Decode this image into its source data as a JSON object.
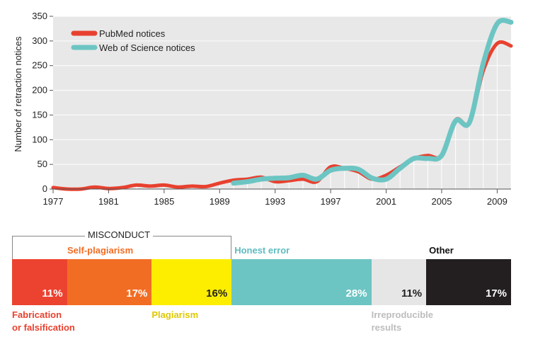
{
  "chart_data": [
    {
      "type": "line",
      "ylabel": "Number of retraction notices",
      "ylim": [
        0,
        350
      ],
      "yticks": [
        0,
        50,
        100,
        150,
        200,
        250,
        300,
        350
      ],
      "xlim": [
        1977,
        2010
      ],
      "xticks": [
        1977,
        1981,
        1985,
        1989,
        1993,
        1997,
        2001,
        2005,
        2009
      ],
      "grid": "vertical year lines from data points",
      "legend_position": "top-left",
      "series": [
        {
          "name": "PubMed notices",
          "color": "#e8412f",
          "x": [
            1977,
            1978,
            1979,
            1980,
            1981,
            1982,
            1983,
            1984,
            1985,
            1986,
            1987,
            1988,
            1989,
            1990,
            1991,
            1992,
            1993,
            1994,
            1995,
            1996,
            1997,
            1998,
            1999,
            2000,
            2001,
            2002,
            2003,
            2004,
            2005,
            2006,
            2007,
            2008,
            2009,
            2010
          ],
          "y": [
            3,
            0,
            0,
            4,
            1,
            3,
            8,
            6,
            8,
            4,
            6,
            5,
            12,
            18,
            20,
            24,
            15,
            17,
            20,
            15,
            45,
            42,
            35,
            20,
            28,
            45,
            62,
            68,
            68,
            140,
            135,
            240,
            295,
            290
          ]
        },
        {
          "name": "Web of Science notices",
          "color": "#6cc5c3",
          "x": [
            1990,
            1991,
            1992,
            1993,
            1994,
            1995,
            1996,
            1997,
            1998,
            1999,
            2000,
            2001,
            2002,
            2003,
            2004,
            2005,
            2006,
            2007,
            2008,
            2009,
            2010
          ],
          "y": [
            12,
            15,
            20,
            22,
            23,
            28,
            20,
            38,
            42,
            40,
            22,
            20,
            42,
            62,
            62,
            68,
            138,
            135,
            255,
            335,
            338
          ]
        }
      ]
    },
    {
      "type": "bar",
      "stacked": true,
      "group_label": "MISCONDUCT",
      "categories": [
        "Fabrication or falsification",
        "Self-plagiarism",
        "Plagiarism",
        "Honest error",
        "Irreproducible results",
        "Other"
      ],
      "values": [
        11,
        17,
        16,
        28,
        11,
        17
      ],
      "value_labels": [
        "11%",
        "17%",
        "16%",
        "28%",
        "11%",
        "17%"
      ],
      "colors": [
        "#ec4330",
        "#f26d24",
        "#fdee00",
        "#6cc5c3",
        "#e6e6e6",
        "#231f20"
      ],
      "label_colors": [
        "#e8412f",
        "#f26d24",
        "#e0c800",
        "#5fbcc0",
        "#bdbdbd",
        "#111111"
      ],
      "pct_colors": [
        "#ffffff",
        "#ffffff",
        "#222222",
        "#ffffff",
        "#222222",
        "#ffffff"
      ],
      "label_texts": [
        "Fabrication\nor falsification",
        "Self-plagiarism",
        "Plagiarism",
        "Honest error",
        "Irreproducible\nresults",
        "Other"
      ]
    }
  ]
}
